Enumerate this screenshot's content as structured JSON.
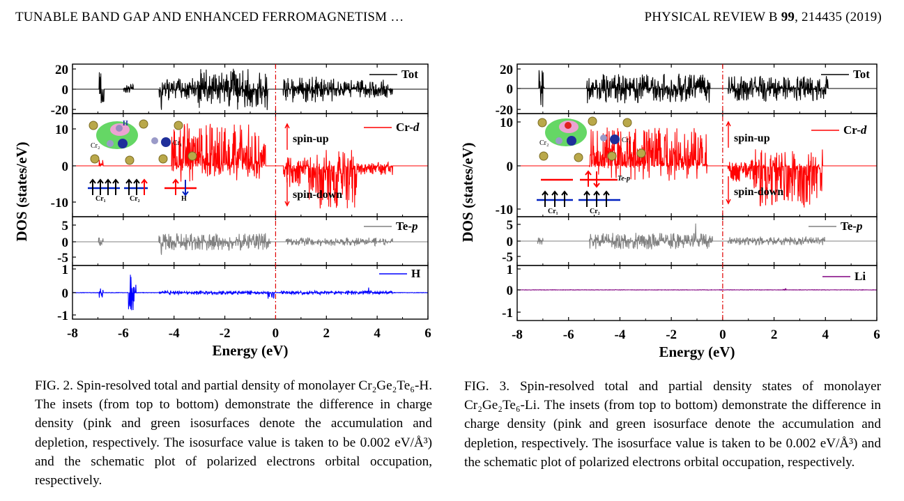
{
  "header": {
    "left": "TUNABLE BAND GAP AND ENHANCED FERROMAGNETISM …",
    "journal": "PHYSICAL REVIEW B",
    "volume": "99",
    "pages": ", 214435 (2019)"
  },
  "figures": [
    {
      "id": "fig2",
      "caption_label": "FIG. 2.",
      "caption_text": "Spin-resolved total and partial density of monolayer Cr₂Ge₂Te₆-H. The insets (from top to bottom) demonstrate the difference in charge density (pink and green isosurfaces denote the accumulation and depletion, respectively. The isosurface value is taken to be 0.002 eV/Å³) and the schematic plot of polarized electrons orbital occupation, respectively.",
      "ylabel": "DOS (states/eV)",
      "xlabel": "Energy (eV)",
      "xticks": [
        "-8",
        "-6",
        "-4",
        "-2",
        "0",
        "2",
        "4",
        "6"
      ],
      "panels": [
        {
          "legend": "Tot",
          "color": "#000000",
          "yticks": [
            "20",
            "0",
            "-20"
          ]
        },
        {
          "legend": "Cr-d",
          "color": "#ff0000",
          "yticks": [
            "10",
            "0",
            "-10"
          ]
        },
        {
          "legend": "Te-p",
          "color": "#808080",
          "yticks": [
            "5",
            "0",
            "-5"
          ]
        },
        {
          "legend": "H",
          "color": "#0000ff",
          "yticks": [
            "1",
            "0",
            "-1"
          ]
        }
      ],
      "annotations": {
        "spin_up": "spin-up",
        "spin_down": "spin-down"
      },
      "inset_labels": {
        "cr1": "Cr₁",
        "cr2": "Cr₂",
        "dopant": "H",
        "te": ""
      }
    },
    {
      "id": "fig3",
      "caption_label": "FIG. 3.",
      "caption_text": "Spin-resolved total and partial density states of monolayer Cr₂Ge₂Te₆-Li. The insets (from top to bottom) demonstrate the difference in charge density (pink and green isosurface denote the accumulation and depletion, respectively. The isosurface value is taken to be 0.002 eV/Å³) and the schematic plot of polarized electrons orbital occupation, respectively.",
      "ylabel": "DOS (states/eV)",
      "xlabel": "Energy (eV)",
      "xticks": [
        "-8",
        "-6",
        "-4",
        "-2",
        "0",
        "2",
        "4",
        "6"
      ],
      "panels": [
        {
          "legend": "Tot",
          "color": "#000000",
          "yticks": [
            "20",
            "0",
            "-20"
          ]
        },
        {
          "legend": "Cr-d",
          "color": "#ff0000",
          "yticks": [
            "10",
            "0",
            "-10"
          ]
        },
        {
          "legend": "Te-p",
          "color": "#808080",
          "yticks": [
            "5",
            "0",
            "-5"
          ]
        },
        {
          "legend": "Li",
          "color": "#800080",
          "yticks": [
            "1",
            "0",
            "-1"
          ]
        }
      ],
      "annotations": {
        "spin_up": "spin-up",
        "spin_down": "spin-down"
      },
      "inset_labels": {
        "cr1": "Cr₁",
        "cr2": "Cr₂",
        "dopant": "Li",
        "te": "Te-p"
      }
    }
  ],
  "chart_data": [
    {
      "type": "line",
      "figure": "FIG. 2",
      "xlabel": "Energy (eV)",
      "ylabel": "DOS (states/eV)",
      "xlim": [
        -8,
        6
      ],
      "fermi_level": 0,
      "subplots": [
        {
          "name": "Tot",
          "ylim": [
            -25,
            25
          ],
          "color": "#000000"
        },
        {
          "name": "Cr-d",
          "ylim": [
            -14,
            12
          ],
          "color": "#ff0000"
        },
        {
          "name": "Te-p",
          "ylim": [
            -7,
            7
          ],
          "color": "#808080"
        },
        {
          "name": "H",
          "ylim": [
            -1.1,
            1.1
          ],
          "color": "#0000ff"
        }
      ]
    },
    {
      "type": "line",
      "figure": "FIG. 3",
      "xlabel": "Energy (eV)",
      "ylabel": "DOS (states/eV)",
      "xlim": [
        -8,
        6
      ],
      "fermi_level": 0,
      "subplots": [
        {
          "name": "Tot",
          "ylim": [
            -25,
            25
          ],
          "color": "#000000"
        },
        {
          "name": "Cr-d",
          "ylim": [
            -13,
            13
          ],
          "color": "#ff0000"
        },
        {
          "name": "Te-p",
          "ylim": [
            -7,
            7
          ],
          "color": "#808080"
        },
        {
          "name": "Li",
          "ylim": [
            -1.1,
            1.1
          ],
          "color": "#800080"
        }
      ]
    }
  ]
}
